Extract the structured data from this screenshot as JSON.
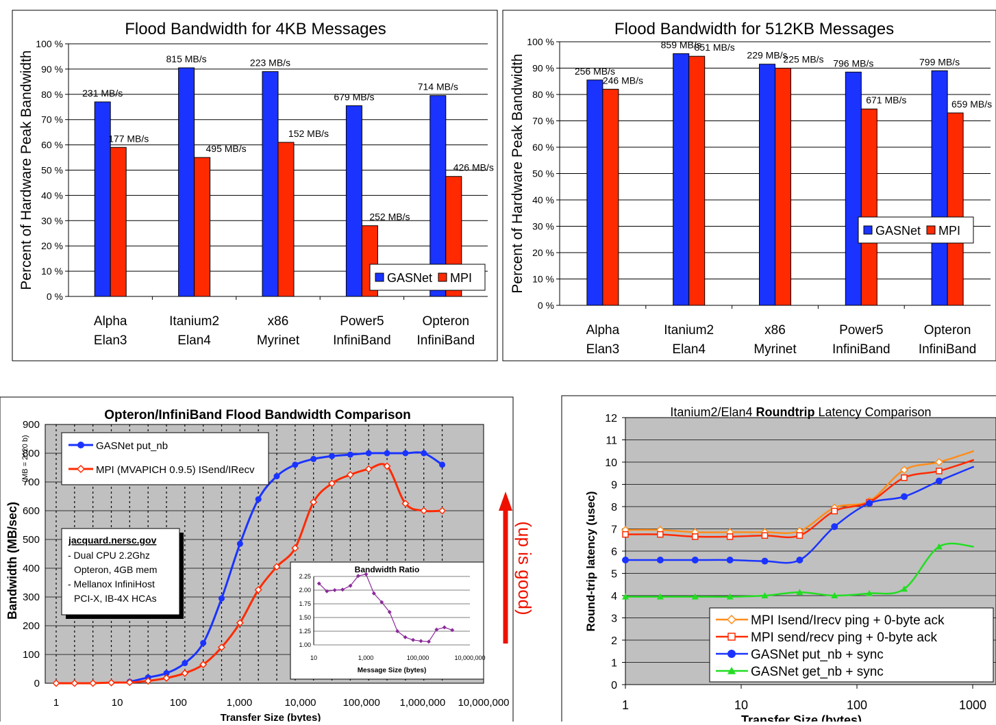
{
  "chart_data": [
    {
      "type": "bar",
      "title": "Flood Bandwidth for 4KB Messages",
      "ylabel": "Percent of Hardware Peak Bandwidth",
      "ylim": [
        0,
        100
      ],
      "yticks": [
        "0 %",
        "10 %",
        "20 %",
        "30 %",
        "40 %",
        "50 %",
        "60 %",
        "70 %",
        "80 %",
        "90 %",
        "100 %"
      ],
      "categories": [
        [
          "Alpha",
          "Elan3"
        ],
        [
          "Itanium2",
          "Elan4"
        ],
        [
          "x86",
          "Myrinet"
        ],
        [
          "Power5",
          "InfiniBand"
        ],
        [
          "Opteron",
          "InfiniBand"
        ]
      ],
      "series": [
        {
          "name": "GASNet",
          "color": "#1a33ff",
          "values": [
            77,
            90.5,
            89,
            75.5,
            79.5
          ],
          "labels": [
            "231 MB/s",
            "815 MB/s",
            "223 MB/s",
            "679 MB/s",
            "714 MB/s"
          ]
        },
        {
          "name": "MPI",
          "color": "#ff2a00",
          "values": [
            59,
            55,
            61,
            28,
            47.5
          ],
          "labels": [
            "177 MB/s",
            "495 MB/s",
            "152 MB/s",
            "252 MB/s",
            "426 MB/s"
          ]
        }
      ],
      "legend": "bottom-right"
    },
    {
      "type": "bar",
      "title": "Flood Bandwidth for 512KB Messages",
      "ylabel": "Percent of Hardware Peak Bandwidth",
      "ylim": [
        0,
        100
      ],
      "yticks": [
        "0 %",
        "10 %",
        "20 %",
        "30 %",
        "40 %",
        "50 %",
        "60 %",
        "70 %",
        "80 %",
        "90 %",
        "100 %"
      ],
      "categories": [
        [
          "Alpha",
          "Elan3"
        ],
        [
          "Itanium2",
          "Elan4"
        ],
        [
          "x86",
          "Myrinet"
        ],
        [
          "Power5",
          "InfiniBand"
        ],
        [
          "Opteron",
          "InfiniBand"
        ]
      ],
      "series": [
        {
          "name": "GASNet",
          "color": "#1a33ff",
          "values": [
            85.5,
            95.5,
            91.5,
            88.5,
            89
          ],
          "labels": [
            "256 MB/s",
            "859 MB/s",
            "229 MB/s",
            "796 MB/s",
            "799 MB/s"
          ]
        },
        {
          "name": "MPI",
          "color": "#ff2a00",
          "values": [
            82,
            94.5,
            90,
            74.5,
            73
          ],
          "labels": [
            "246 MB/s",
            "851 MB/s",
            "225 MB/s",
            "671 MB/s",
            "659 MB/s"
          ]
        }
      ],
      "legend": "right"
    },
    {
      "type": "line",
      "title": "Opteron/InfiniBand Flood Bandwidth Comparison",
      "xlabel": "Transfer Size (bytes)",
      "ylabel": "Bandwidth (MB/sec)",
      "ylabel_note": "(MB = 2^20 b)",
      "xscale": "log",
      "xlim": [
        1,
        10000000
      ],
      "ylim": [
        0,
        900
      ],
      "xticks": [
        "1",
        "10",
        "100",
        "1,000",
        "10,000",
        "100,000",
        "1,000,000",
        "10,000,000"
      ],
      "yticks": [
        "0",
        "100",
        "200",
        "300",
        "400",
        "500",
        "600",
        "700",
        "800",
        "900"
      ],
      "x": [
        1,
        2,
        4,
        8,
        16,
        32,
        64,
        128,
        256,
        512,
        1024,
        2048,
        4096,
        8192,
        16384,
        32768,
        65536,
        131072,
        262144,
        524288,
        1048576,
        2097152
      ],
      "series": [
        {
          "name": "GASNet put_nb",
          "color": "#1a33ff",
          "marker": "circle",
          "values": [
            null,
            null,
            null,
            null,
            5,
            20,
            35,
            70,
            140,
            295,
            485,
            640,
            720,
            760,
            780,
            790,
            795,
            800,
            800,
            800,
            800,
            760
          ]
        },
        {
          "name": "MPI (MVAPICH 0.9.5) ISend/IRecv",
          "color": "#ff2a00",
          "marker": "diamond",
          "values": [
            0,
            0,
            0,
            2,
            3,
            8,
            18,
            35,
            65,
            125,
            210,
            325,
            405,
            470,
            630,
            695,
            725,
            745,
            755,
            625,
            600,
            600
          ]
        }
      ],
      "annotation": {
        "title": "jacquard.nersc.gov",
        "lines": [
          "- Dual CPU 2.2Ghz",
          "Opteron, 4GB mem",
          "- Mellanox InfiniHost",
          "PCI-X, IB-4X HCAs"
        ]
      },
      "arrow_label": "(up is good)",
      "inset": {
        "type": "line",
        "title": "Bandwidth Ratio",
        "xlabel": "Message Size (bytes)",
        "xscale": "log",
        "xlim": [
          10,
          10000000
        ],
        "ylim": [
          1.0,
          2.25
        ],
        "xticks": [
          "10",
          "1,000",
          "100,000",
          "10,000,000"
        ],
        "yticks": [
          "1.00",
          "1.25",
          "1.50",
          "1.75",
          "2.00",
          "2.25"
        ],
        "x": [
          16,
          32,
          64,
          128,
          256,
          512,
          1024,
          2048,
          4096,
          8192,
          16384,
          32768,
          65536,
          131072,
          262144,
          524288,
          1048576,
          2097152
        ],
        "values": [
          2.12,
          1.98,
          2.0,
          2.01,
          2.08,
          2.26,
          2.29,
          1.94,
          1.78,
          1.6,
          1.25,
          1.14,
          1.09,
          1.07,
          1.06,
          1.28,
          1.32,
          1.27
        ],
        "color": "#8b2a9a"
      }
    },
    {
      "type": "line",
      "title_prefix": "Itanium2/Elan4 ",
      "title_bold": "Roundtrip",
      "title_suffix": " Latency Comparison",
      "xlabel": "Transfer Size (bytes)",
      "ylabel": "Round-trip latency (usec)",
      "xscale": "log",
      "xlim": [
        1,
        1000
      ],
      "ylim": [
        0,
        12
      ],
      "xticks": [
        "1",
        "10",
        "100",
        "1000"
      ],
      "yticks": [
        "0",
        "1",
        "2",
        "3",
        "4",
        "5",
        "6",
        "7",
        "8",
        "9",
        "10",
        "11",
        "12"
      ],
      "x": [
        1,
        2,
        4,
        8,
        16,
        32,
        64,
        128,
        256,
        512,
        1024
      ],
      "series": [
        {
          "name": "MPI Isend/Irecv ping + 0-byte ack",
          "color": "#ff8c1a",
          "marker": "diamond",
          "values": [
            6.95,
            6.95,
            6.85,
            6.85,
            6.85,
            6.9,
            7.95,
            8.25,
            9.65,
            10.0,
            10.5
          ]
        },
        {
          "name": "MPI send/recv ping + 0-byte ack",
          "color": "#ff2a00",
          "marker": "square",
          "values": [
            6.75,
            6.75,
            6.65,
            6.65,
            6.7,
            6.7,
            7.8,
            8.2,
            9.3,
            9.6,
            10.1
          ]
        },
        {
          "name": "GASNet put_nb + sync",
          "color": "#1a33ff",
          "marker": "circle",
          "values": [
            5.6,
            5.6,
            5.6,
            5.6,
            5.55,
            5.6,
            7.1,
            8.15,
            8.45,
            9.15,
            9.8
          ]
        },
        {
          "name": "GASNet get_nb + sync",
          "color": "#22dd22",
          "marker": "triangle",
          "values": [
            3.95,
            3.95,
            3.95,
            3.95,
            4.0,
            4.15,
            4.0,
            4.1,
            4.3,
            6.2,
            6.2
          ]
        }
      ],
      "legend": "bottom-right"
    }
  ]
}
